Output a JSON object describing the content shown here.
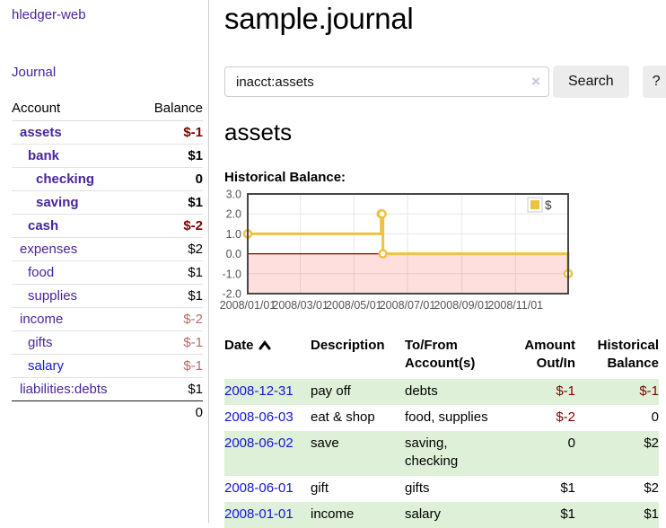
{
  "colors": {
    "link_purple": "#4a2599",
    "link_blue": "#1515d6",
    "negative_strong": "#800000",
    "negative_soft": "#b36b6b",
    "row_green": "#dff0d8",
    "series_gold": "#edc240",
    "zero_line": "#8b0000",
    "chart_border": "#474747"
  },
  "app": {
    "title": "hledger-web"
  },
  "nav": {
    "journal": "Journal"
  },
  "sidebar": {
    "header": {
      "account": "Account",
      "balance": "Balance"
    },
    "accounts": [
      {
        "name": "assets",
        "indent": 1,
        "bold": true,
        "balance": "$-1",
        "neg": "strong"
      },
      {
        "name": "bank",
        "indent": 2,
        "bold": true,
        "balance": "$1",
        "neg": null
      },
      {
        "name": "checking",
        "indent": 3,
        "bold": true,
        "balance": "0",
        "neg": null
      },
      {
        "name": "saving",
        "indent": 3,
        "bold": true,
        "balance": "$1",
        "neg": null
      },
      {
        "name": "cash",
        "indent": 2,
        "bold": true,
        "balance": "$-2",
        "neg": "strong"
      },
      {
        "name": "expenses",
        "indent": 1,
        "bold": false,
        "balance": "$2",
        "neg": null
      },
      {
        "name": "food",
        "indent": 2,
        "bold": false,
        "balance": "$1",
        "neg": null
      },
      {
        "name": "supplies",
        "indent": 2,
        "bold": false,
        "balance": "$1",
        "neg": null
      },
      {
        "name": "income",
        "indent": 1,
        "bold": false,
        "balance": "$-2",
        "neg": "soft"
      },
      {
        "name": "gifts",
        "indent": 2,
        "bold": false,
        "balance": "$-1",
        "neg": "soft"
      },
      {
        "name": "salary",
        "indent": 2,
        "bold": false,
        "balance": "$-1",
        "neg": "soft",
        "link": "unvisited"
      },
      {
        "name": "liabilities:debts",
        "indent": 1,
        "bold": false,
        "balance": "$1",
        "neg": null
      }
    ],
    "total": "0"
  },
  "main": {
    "title": "sample.journal",
    "search": {
      "value": "inacct:assets",
      "clear_icon": "×",
      "search_button": "Search",
      "help_button": "?"
    },
    "account_title": "assets",
    "chart_heading": "Historical Balance:"
  },
  "chart_data": {
    "type": "line",
    "step": true,
    "title": "Historical Balance:",
    "x_type": "date",
    "x_origin": "2008-01-01",
    "x_total_days": 365,
    "series": [
      {
        "name": "$",
        "color": "#edc240",
        "points": [
          [
            "2008-01-01",
            1
          ],
          [
            "2008-06-01",
            2
          ],
          [
            "2008-06-02",
            2
          ],
          [
            "2008-06-03",
            0
          ],
          [
            "2008-12-31",
            -1
          ]
        ]
      }
    ],
    "ylim": [
      -2,
      3
    ],
    "yticks": [
      3.0,
      2.0,
      1.0,
      0.0,
      -1.0,
      -2.0
    ],
    "xticks": [
      [
        "2008/01/01",
        "2008-01-01"
      ],
      [
        "2008/03/01",
        "2008-03-01"
      ],
      [
        "2008/05/01",
        "2008-05-01"
      ],
      [
        "2008/07/01",
        "2008-07-01"
      ],
      [
        "2008/09/01",
        "2008-09-01"
      ],
      [
        "2008/11/01",
        "2008-11-01"
      ]
    ],
    "grid": true,
    "legend": {
      "label": "$",
      "position": "top-right"
    },
    "negative_region": true
  },
  "register": {
    "columns": [
      "Date",
      "Description",
      "To/From Account(s)",
      "Amount Out/In",
      "Historical Balance"
    ],
    "sort_column": "Date",
    "sort_direction": "ascending",
    "sort_icon": "chevron-up",
    "rows": [
      {
        "date": "2008-12-31",
        "description": "pay off",
        "accounts": "debts",
        "amount": "$-1",
        "amount_negative": true,
        "balance": "$-1",
        "balance_negative": true
      },
      {
        "date": "2008-06-03",
        "description": "eat & shop",
        "accounts": "food, supplies",
        "amount": "$-2",
        "amount_negative": true,
        "balance": "0",
        "balance_negative": false
      },
      {
        "date": "2008-06-02",
        "description": "save",
        "accounts": "saving, checking",
        "amount": "0",
        "amount_negative": false,
        "balance": "$2",
        "balance_negative": false
      },
      {
        "date": "2008-06-01",
        "description": "gift",
        "accounts": "gifts",
        "amount": "$1",
        "amount_negative": false,
        "balance": "$2",
        "balance_negative": false
      },
      {
        "date": "2008-01-01",
        "description": "income",
        "accounts": "salary",
        "amount": "$1",
        "amount_negative": false,
        "balance": "$1",
        "balance_negative": false
      }
    ]
  }
}
